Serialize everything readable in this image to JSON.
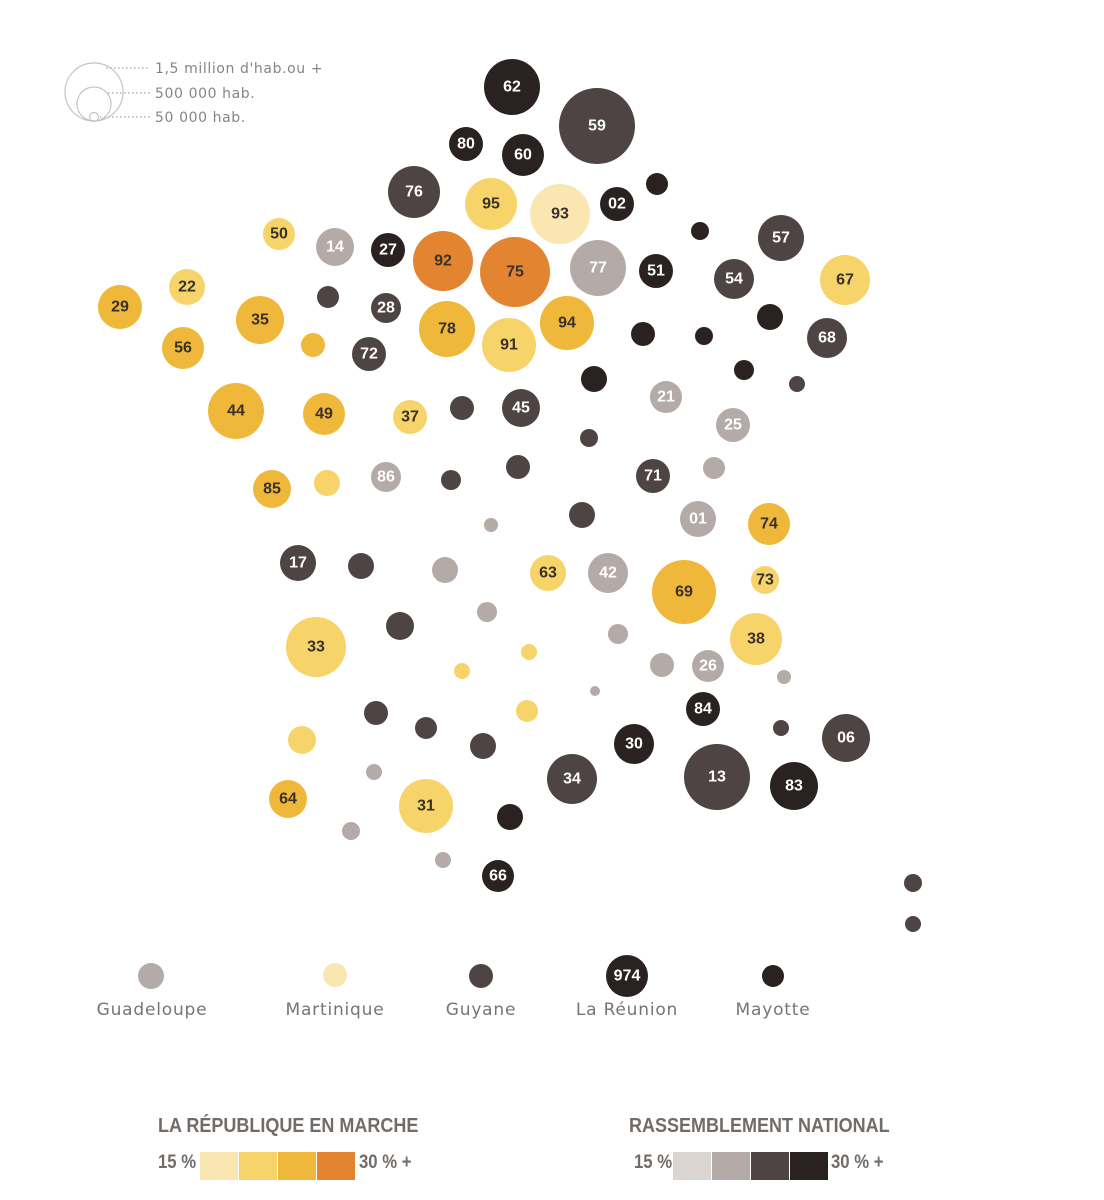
{
  "size_legend": [
    {
      "label": "1,5 million d'hab.ou +"
    },
    {
      "label": "500 000 hab."
    },
    {
      "label": "50 000 hab."
    }
  ],
  "colors": {
    "lrem": [
      "#fae6b0",
      "#f7d46a",
      "#f0b83a",
      "#e38431"
    ],
    "rn": [
      "#dcd6d3",
      "#b4aaa7",
      "#4e4443",
      "#2a2220"
    ],
    "label_dark": "#3a302c",
    "label_light": "#ffffff"
  },
  "departements": [
    {
      "code": "62",
      "cat": "rn3"
    },
    {
      "code": "59",
      "cat": "rn2"
    },
    {
      "code": "80",
      "cat": "rn3"
    },
    {
      "code": "60",
      "cat": "rn3"
    },
    {
      "code": "76",
      "cat": "rn2"
    },
    {
      "code": "95",
      "cat": "l1"
    },
    {
      "code": "93",
      "cat": "l0"
    },
    {
      "code": "02",
      "cat": "rn3"
    },
    {
      "code": "",
      "cat": "rn3"
    },
    {
      "code": "50",
      "cat": "l1"
    },
    {
      "code": "14",
      "cat": "rn1"
    },
    {
      "code": "27",
      "cat": "rn3"
    },
    {
      "code": "92",
      "cat": "l3"
    },
    {
      "code": "75",
      "cat": "l3"
    },
    {
      "code": "77",
      "cat": "rn1"
    },
    {
      "code": "51",
      "cat": "rn3"
    },
    {
      "code": "",
      "cat": "rn3"
    },
    {
      "code": "57",
      "cat": "rn2"
    },
    {
      "code": "54",
      "cat": "rn2"
    },
    {
      "code": "67",
      "cat": "l1"
    },
    {
      "code": "29",
      "cat": "l2"
    },
    {
      "code": "22",
      "cat": "l1"
    },
    {
      "code": "35",
      "cat": "l2"
    },
    {
      "code": "",
      "cat": "rn2"
    },
    {
      "code": "28",
      "cat": "rn2"
    },
    {
      "code": "78",
      "cat": "l2"
    },
    {
      "code": "91",
      "cat": "l1"
    },
    {
      "code": "94",
      "cat": "l2"
    },
    {
      "code": "",
      "cat": "rn3"
    },
    {
      "code": "",
      "cat": "rn3"
    },
    {
      "code": "",
      "cat": "rn3"
    },
    {
      "code": "68",
      "cat": "rn2"
    },
    {
      "code": "56",
      "cat": "l2"
    },
    {
      "code": "",
      "cat": "l2"
    },
    {
      "code": "72",
      "cat": "rn2"
    },
    {
      "code": "",
      "cat": "rn3"
    },
    {
      "code": "",
      "cat": "rn3"
    },
    {
      "code": "",
      "cat": "rn2"
    },
    {
      "code": "44",
      "cat": "l2"
    },
    {
      "code": "49",
      "cat": "l2"
    },
    {
      "code": "37",
      "cat": "l1"
    },
    {
      "code": "",
      "cat": "rn2"
    },
    {
      "code": "45",
      "cat": "rn2"
    },
    {
      "code": "21",
      "cat": "rn1"
    },
    {
      "code": "25",
      "cat": "rn1"
    },
    {
      "code": "",
      "cat": "rn2"
    },
    {
      "code": "85",
      "cat": "l2"
    },
    {
      "code": "",
      "cat": "l1"
    },
    {
      "code": "86",
      "cat": "rn1"
    },
    {
      "code": "",
      "cat": "rn2"
    },
    {
      "code": "",
      "cat": "rn2"
    },
    {
      "code": "71",
      "cat": "rn2"
    },
    {
      "code": "",
      "cat": "rn1"
    },
    {
      "code": "",
      "cat": "rn1"
    },
    {
      "code": "",
      "cat": "rn2"
    },
    {
      "code": "01",
      "cat": "rn1"
    },
    {
      "code": "74",
      "cat": "l2"
    },
    {
      "code": "17",
      "cat": "rn2"
    },
    {
      "code": "",
      "cat": "rn2"
    },
    {
      "code": "",
      "cat": "rn1"
    },
    {
      "code": "63",
      "cat": "l1"
    },
    {
      "code": "42",
      "cat": "rn1"
    },
    {
      "code": "69",
      "cat": "l2"
    },
    {
      "code": "73",
      "cat": "l1"
    },
    {
      "code": "",
      "cat": "rn1"
    },
    {
      "code": "33",
      "cat": "l1"
    },
    {
      "code": "",
      "cat": "rn2"
    },
    {
      "code": "",
      "cat": "l1"
    },
    {
      "code": "",
      "cat": "rn1"
    },
    {
      "code": "38",
      "cat": "l1"
    },
    {
      "code": "",
      "cat": "l1"
    },
    {
      "code": "",
      "cat": "rn1"
    },
    {
      "code": "26",
      "cat": "rn1"
    },
    {
      "code": "",
      "cat": "rn1"
    },
    {
      "code": "",
      "cat": "rn1"
    },
    {
      "code": "",
      "cat": "l1"
    },
    {
      "code": "84",
      "cat": "rn3"
    },
    {
      "code": "",
      "cat": "rn2"
    },
    {
      "code": "",
      "cat": "rn2"
    },
    {
      "code": "",
      "cat": "rn2"
    },
    {
      "code": "",
      "cat": "rn2"
    },
    {
      "code": "06",
      "cat": "rn2"
    },
    {
      "code": "",
      "cat": "l1"
    },
    {
      "code": "30",
      "cat": "rn3"
    },
    {
      "code": "",
      "cat": "rn1"
    },
    {
      "code": "34",
      "cat": "rn2"
    },
    {
      "code": "13",
      "cat": "rn2"
    },
    {
      "code": "83",
      "cat": "rn3"
    },
    {
      "code": "64",
      "cat": "l2"
    },
    {
      "code": "31",
      "cat": "l1"
    },
    {
      "code": "",
      "cat": "rn1"
    },
    {
      "code": "",
      "cat": "rn3"
    },
    {
      "code": "",
      "cat": "rn1"
    },
    {
      "code": "66",
      "cat": "rn3"
    },
    {
      "code": "",
      "cat": "rn2"
    },
    {
      "code": "",
      "cat": "rn2"
    }
  ],
  "overseas": [
    {
      "name": "Guadeloupe",
      "code": "",
      "cat": "rn1"
    },
    {
      "name": "Martinique",
      "code": "",
      "cat": "l0"
    },
    {
      "name": "Guyane",
      "code": "",
      "cat": "rn2"
    },
    {
      "name": "La Réunion",
      "code": "974",
      "cat": "rn3"
    },
    {
      "name": "Mayotte",
      "code": "",
      "cat": "rn3"
    }
  ],
  "color_scales": {
    "lrem": {
      "title": "LA RÉPUBLIQUE EN MARCHE",
      "min_label": "15 %",
      "max_label": "30 % +"
    },
    "rn": {
      "title": "RASSEMBLEMENT NATIONAL",
      "min_label": "15 %",
      "max_label": "30 % +"
    }
  }
}
